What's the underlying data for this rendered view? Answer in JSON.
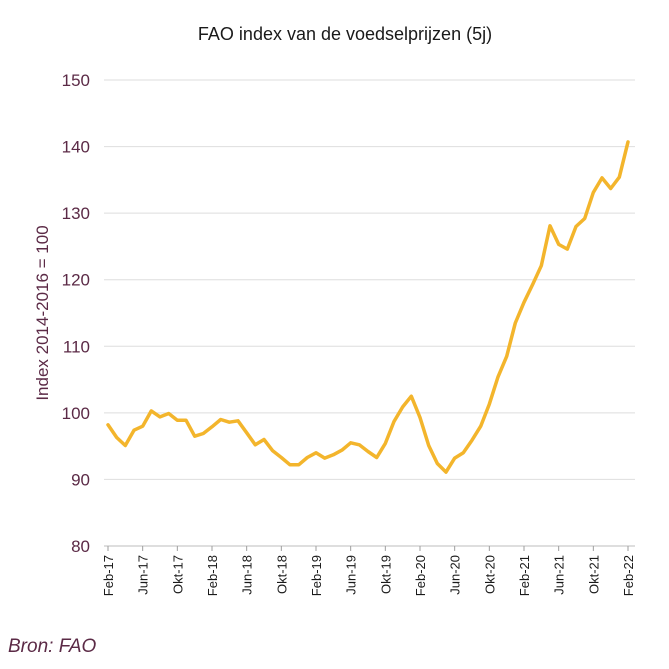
{
  "colors": {
    "line": "#F3B52C",
    "grid": "#dedede",
    "axis_text": "#5b2a46",
    "text": "#1a1a1a"
  },
  "source": "Bron: FAO",
  "chart_data": {
    "type": "line",
    "title": "FAO index van de voedselprijzen (5j)",
    "xlabel": "",
    "ylabel": "Index 2014-2016 = 100",
    "ylim": [
      80,
      150
    ],
    "yticks": [
      80,
      90,
      100,
      110,
      120,
      130,
      140,
      150
    ],
    "grid": true,
    "tick_labels": [
      "Feb-17",
      "Jun-17",
      "Okt-17",
      "Feb-18",
      "Jun-18",
      "Okt-18",
      "Feb-19",
      "Jun-19",
      "Okt-19",
      "Feb-20",
      "Jun-20",
      "Okt-20",
      "Feb-21",
      "Jun-21",
      "Okt-21",
      "Feb-22"
    ],
    "x_start": "Feb-17",
    "x_end": "Feb-22",
    "series": [
      {
        "values": [
          98.2,
          96.3,
          95.1,
          97.4,
          98.0,
          100.3,
          99.4,
          99.9,
          98.9,
          98.9,
          96.5,
          96.9,
          97.9,
          99.0,
          98.6,
          98.8,
          97.0,
          95.2,
          96.0,
          94.3,
          93.3,
          92.2,
          92.2,
          93.3,
          94.0,
          93.2,
          93.7,
          94.4,
          95.5,
          95.2,
          94.2,
          93.3,
          95.4,
          98.7,
          100.9,
          102.5,
          99.3,
          95.1,
          92.4,
          91.1,
          93.2,
          94.0,
          95.9,
          98.0,
          101.3,
          105.4,
          108.5,
          113.5,
          116.6,
          119.3,
          122.1,
          128.1,
          125.3,
          124.6,
          128.0,
          129.2,
          133.1,
          135.3,
          133.7,
          135.4,
          140.7
        ]
      }
    ]
  }
}
